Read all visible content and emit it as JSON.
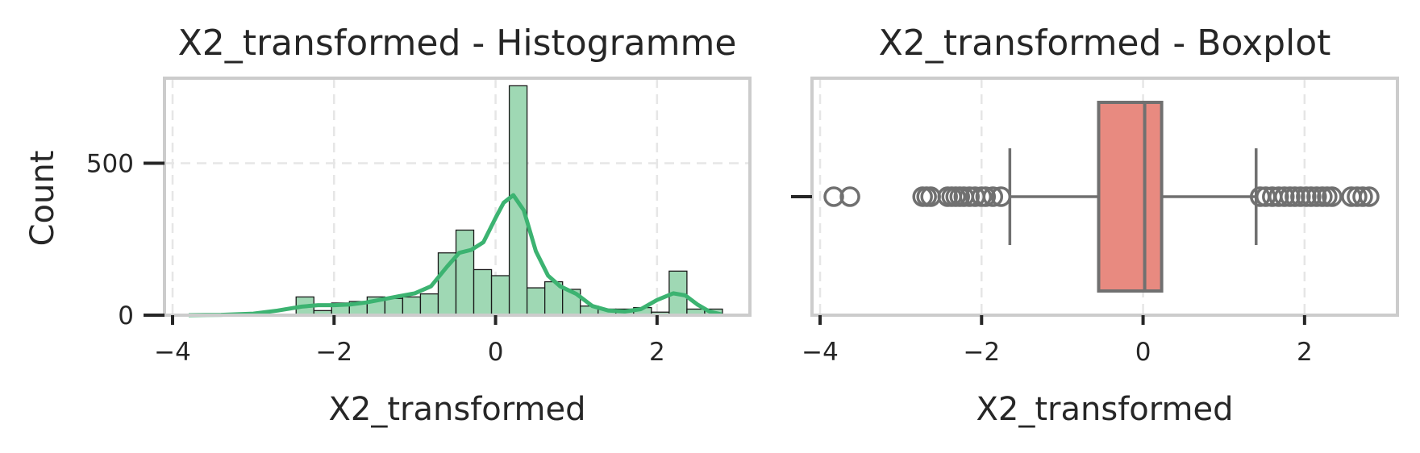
{
  "chart_data": [
    {
      "type": "bar",
      "subtype": "histogram-with-kde",
      "title": "X2_transformed - Histogramme",
      "xlabel": "X2_transformed",
      "ylabel": "Count",
      "xlim": [
        -4.1,
        3.15
      ],
      "ylim": [
        0,
        780
      ],
      "xticks": [
        -4,
        -2,
        0,
        2
      ],
      "xtick_labels": [
        "−4",
        "−2",
        "0",
        "2"
      ],
      "yticks": [
        0,
        500
      ],
      "ytick_labels": [
        "0",
        "500"
      ],
      "grid": true,
      "colors": {
        "bars": "#9fd8b4",
        "bar_edge": "#1a1a1a",
        "kde": "#3cb371"
      },
      "bins": [
        {
          "x0": -2.47,
          "x1": -2.25,
          "count": 60
        },
        {
          "x0": -2.25,
          "x1": -2.03,
          "count": 15
        },
        {
          "x0": -2.03,
          "x1": -1.81,
          "count": 40
        },
        {
          "x0": -1.81,
          "x1": -1.59,
          "count": 45
        },
        {
          "x0": -1.59,
          "x1": -1.37,
          "count": 60
        },
        {
          "x0": -1.37,
          "x1": -1.15,
          "count": 55
        },
        {
          "x0": -1.15,
          "x1": -0.93,
          "count": 60
        },
        {
          "x0": -0.93,
          "x1": -0.71,
          "count": 70
        },
        {
          "x0": -0.71,
          "x1": -0.49,
          "count": 205
        },
        {
          "x0": -0.49,
          "x1": -0.27,
          "count": 280
        },
        {
          "x0": -0.27,
          "x1": -0.05,
          "count": 150
        },
        {
          "x0": -0.05,
          "x1": 0.17,
          "count": 130
        },
        {
          "x0": 0.17,
          "x1": 0.39,
          "count": 755
        },
        {
          "x0": 0.39,
          "x1": 0.61,
          "count": 90
        },
        {
          "x0": 0.61,
          "x1": 0.83,
          "count": 110
        },
        {
          "x0": 0.83,
          "x1": 1.05,
          "count": 85
        },
        {
          "x0": 1.05,
          "x1": 1.27,
          "count": 30
        },
        {
          "x0": 1.27,
          "x1": 1.49,
          "count": 20
        },
        {
          "x0": 1.49,
          "x1": 1.71,
          "count": 20
        },
        {
          "x0": 1.71,
          "x1": 1.93,
          "count": 25
        },
        {
          "x0": 1.93,
          "x1": 2.15,
          "count": 10
        },
        {
          "x0": 2.15,
          "x1": 2.37,
          "count": 145
        },
        {
          "x0": 2.37,
          "x1": 2.59,
          "count": 20
        },
        {
          "x0": 2.59,
          "x1": 2.81,
          "count": 20
        }
      ],
      "kde": {
        "x": [
          -3.8,
          -3.4,
          -3.0,
          -2.7,
          -2.4,
          -2.2,
          -2.0,
          -1.8,
          -1.6,
          -1.4,
          -1.2,
          -1.0,
          -0.8,
          -0.6,
          -0.45,
          -0.3,
          -0.15,
          0.0,
          0.1,
          0.22,
          0.35,
          0.5,
          0.65,
          0.8,
          1.0,
          1.2,
          1.4,
          1.6,
          1.8,
          2.0,
          2.2,
          2.35,
          2.5,
          2.65,
          2.8
        ],
        "y": [
          0,
          1,
          5,
          15,
          28,
          33,
          33,
          35,
          42,
          52,
          62,
          72,
          95,
          160,
          205,
          215,
          240,
          320,
          370,
          395,
          345,
          210,
          130,
          95,
          70,
          30,
          15,
          12,
          20,
          50,
          72,
          65,
          35,
          12,
          2
        ]
      }
    },
    {
      "type": "boxplot",
      "title": "X2_transformed - Boxplot",
      "xlabel": "X2_transformed",
      "ylabel": "",
      "xlim": [
        -4.1,
        3.15
      ],
      "xticks": [
        -4,
        -2,
        0,
        2
      ],
      "xtick_labels": [
        "−4",
        "−2",
        "0",
        "2"
      ],
      "grid": true,
      "colors": {
        "box": "#e88a80",
        "line": "#707070"
      },
      "box": {
        "q1": -0.55,
        "median": 0.02,
        "q3": 0.23,
        "whisker_low": -1.65,
        "whisker_high": 1.4
      },
      "outliers": [
        -3.83,
        -3.63,
        -2.73,
        -2.68,
        -2.63,
        -2.42,
        -2.37,
        -2.32,
        -2.27,
        -2.22,
        -2.15,
        -2.08,
        -2.0,
        -1.95,
        -1.86,
        -1.76,
        1.45,
        1.52,
        1.6,
        1.68,
        1.75,
        1.82,
        1.88,
        1.95,
        2.02,
        2.08,
        2.15,
        2.22,
        2.28,
        2.34,
        2.58,
        2.65,
        2.72,
        2.8
      ]
    }
  ]
}
